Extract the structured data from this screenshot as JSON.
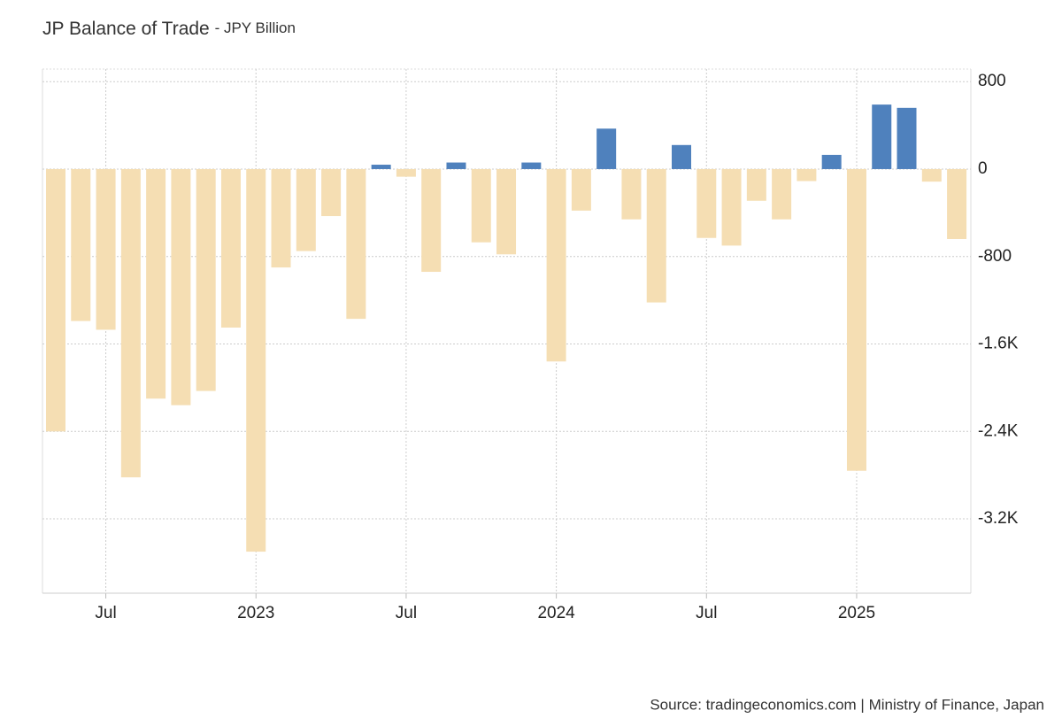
{
  "chart_data": {
    "type": "bar",
    "title": "JP Balance of Trade",
    "subtitle": "- JPY Billion",
    "source": "Source: tradingeconomics.com | Ministry of Finance, Japan",
    "categories": [
      null,
      null,
      "Jul",
      null,
      null,
      null,
      null,
      null,
      "2023",
      null,
      null,
      null,
      null,
      null,
      "Jul",
      null,
      null,
      null,
      null,
      null,
      "2024",
      null,
      null,
      null,
      null,
      null,
      "Jul",
      null,
      null,
      null,
      null,
      null,
      "2025",
      null,
      null,
      null,
      null
    ],
    "values": [
      -2400,
      -1390,
      -1470,
      -2820,
      -2100,
      -2160,
      -2030,
      -1450,
      -3500,
      -900,
      -750,
      -430,
      -1370,
      40,
      -70,
      -940,
      60,
      -670,
      -780,
      60,
      -1760,
      -380,
      370,
      -460,
      -1220,
      220,
      -630,
      -700,
      -290,
      -460,
      -110,
      130,
      -2760,
      590,
      560,
      -115,
      -640
    ],
    "color": "#4f81bd",
    "negative_color": "#f5deb3",
    "ylim": [
      -3880,
      915
    ],
    "yticks": [
      800,
      0,
      -800,
      {
        "value": -1600,
        "label": "-1.6K"
      },
      {
        "value": -2400,
        "label": "-2.4K"
      },
      {
        "value": -3200,
        "label": "-3.2K"
      }
    ],
    "grid": true
  }
}
